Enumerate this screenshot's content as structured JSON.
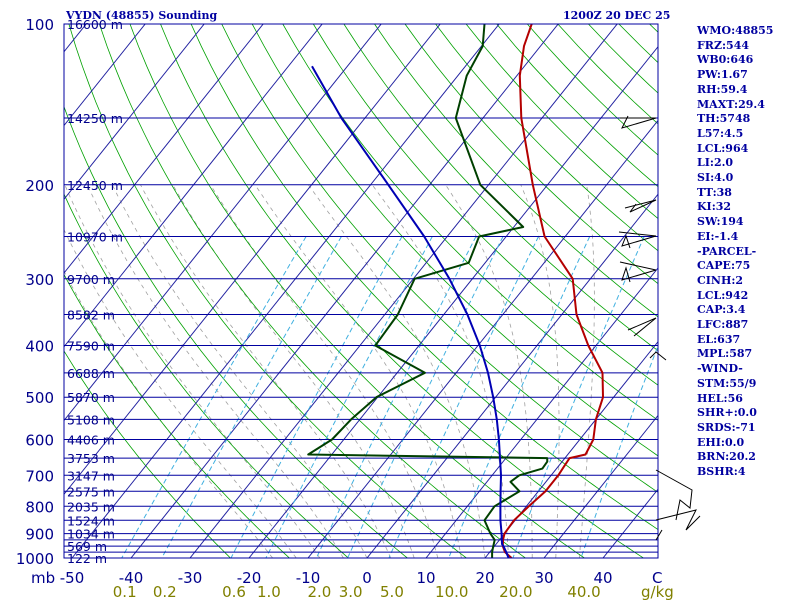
{
  "chart_data": {
    "type": "skew-t sounding",
    "title_left": "VYDN (48855) Sounding",
    "title_right": "1200Z 20 DEC 25",
    "y_unit_label": "mb",
    "x_unit_label": "C",
    "mixing_unit_label": "g/kg",
    "pressure_ticks": [
      100,
      200,
      300,
      400,
      500,
      600,
      700,
      800,
      900,
      1000
    ],
    "pressure_lines": [
      100,
      150,
      200,
      250,
      300,
      350,
      400,
      450,
      500,
      550,
      600,
      650,
      700,
      750,
      800,
      850,
      900,
      925,
      950,
      975,
      1000
    ],
    "temperature_ticks": [
      -50,
      -40,
      -30,
      -20,
      -10,
      0,
      10,
      20,
      30,
      40
    ],
    "mixing_ratio_ticks": [
      "0.1",
      "0.2",
      "0.6",
      "1.0",
      "2.0",
      "3.0",
      "5.0",
      "10.0",
      "20.0",
      "40.0"
    ],
    "mixing_ratio_values": [
      0.1,
      0.2,
      0.6,
      1.0,
      2.0,
      3.0,
      5.0,
      10.0,
      20.0,
      40.0
    ],
    "height_labels": [
      {
        "p": 100,
        "label": "16600 m"
      },
      {
        "p": 150,
        "label": "14250 m"
      },
      {
        "p": 200,
        "label": "12450 m"
      },
      {
        "p": 250,
        "label": "10970 m"
      },
      {
        "p": 300,
        "label": "9700 m"
      },
      {
        "p": 350,
        "label": "8582 m"
      },
      {
        "p": 400,
        "label": "7590 m"
      },
      {
        "p": 450,
        "label": "6688 m"
      },
      {
        "p": 500,
        "label": "5870 m"
      },
      {
        "p": 550,
        "label": "5108 m"
      },
      {
        "p": 600,
        "label": "4406 m"
      },
      {
        "p": 650,
        "label": "3753 m"
      },
      {
        "p": 700,
        "label": "3147 m"
      },
      {
        "p": 750,
        "label": "2575 m"
      },
      {
        "p": 800,
        "label": "2035 m"
      },
      {
        "p": 850,
        "label": "1524 m"
      },
      {
        "p": 900,
        "label": "1034 m"
      },
      {
        "p": 950,
        "label": "569 m"
      },
      {
        "p": 1000,
        "label": "122 m"
      }
    ],
    "series": [
      {
        "name": "Temperature",
        "color": "#b40000",
        "points": [
          [
            1000,
            24.5
          ],
          [
            975,
            22.6
          ],
          [
            950,
            21.4
          ],
          [
            925,
            20.6
          ],
          [
            900,
            20.0
          ],
          [
            850,
            19.8
          ],
          [
            800,
            20.4
          ],
          [
            750,
            21.2
          ],
          [
            700,
            21.2
          ],
          [
            675,
            21.0
          ],
          [
            650,
            20.8
          ],
          [
            640,
            23.0
          ],
          [
            600,
            22.3
          ],
          [
            550,
            20.0
          ],
          [
            500,
            18.2
          ],
          [
            450,
            14.8
          ],
          [
            400,
            8.7
          ],
          [
            350,
            2.5
          ],
          [
            300,
            -3.0
          ],
          [
            250,
            -13.5
          ],
          [
            200,
            -22.5
          ],
          [
            150,
            -33.5
          ],
          [
            125,
            -39.5
          ],
          [
            110,
            -42.8
          ],
          [
            100,
            -44.5
          ]
        ]
      },
      {
        "name": "Dewpoint",
        "color": "#004000",
        "points": [
          [
            1000,
            21.2
          ],
          [
            975,
            20.4
          ],
          [
            950,
            19.8
          ],
          [
            925,
            19.2
          ],
          [
            900,
            17.6
          ],
          [
            850,
            14.8
          ],
          [
            800,
            14.6
          ],
          [
            750,
            16.8
          ],
          [
            720,
            14.0
          ],
          [
            700,
            14.6
          ],
          [
            680,
            17.6
          ],
          [
            660,
            17.5
          ],
          [
            650,
            17.0
          ],
          [
            640,
            -24.0
          ],
          [
            600,
            -22.0
          ],
          [
            550,
            -21.5
          ],
          [
            500,
            -20.2
          ],
          [
            450,
            -15.3
          ],
          [
            400,
            -27.4
          ],
          [
            350,
            -27.8
          ],
          [
            300,
            -29.8
          ],
          [
            280,
            -22.8
          ],
          [
            250,
            -24.6
          ],
          [
            240,
            -18.4
          ],
          [
            200,
            -31.4
          ],
          [
            150,
            -44.6
          ],
          [
            125,
            -48.5
          ],
          [
            110,
            -49.8
          ],
          [
            100,
            -52.5
          ]
        ]
      },
      {
        "name": "Parcel",
        "color": "#0000b4",
        "points": [
          [
            1000,
            24.0
          ],
          [
            975,
            22.8
          ],
          [
            950,
            21.5
          ],
          [
            942,
            21.0
          ],
          [
            900,
            19.5
          ],
          [
            850,
            17.5
          ],
          [
            800,
            15.6
          ],
          [
            750,
            13.6
          ],
          [
            700,
            11.5
          ],
          [
            650,
            9.0
          ],
          [
            600,
            6.3
          ],
          [
            550,
            3.2
          ],
          [
            500,
            -0.4
          ],
          [
            450,
            -4.6
          ],
          [
            400,
            -9.7
          ],
          [
            350,
            -16.0
          ],
          [
            300,
            -23.9
          ],
          [
            250,
            -33.9
          ],
          [
            200,
            -47.0
          ],
          [
            150,
            -64.0
          ],
          [
            120,
            -76.0
          ]
        ]
      }
    ],
    "wind_barbs_on_chart": true,
    "indices": [
      "WMO:48855",
      "FRZ:544",
      "WB0:646",
      "PW:1.67",
      "RH:59.4",
      "MAXT:29.4",
      "TH:5748",
      "L57:4.5",
      "LCL:964",
      "LI:2.0",
      "SI:4.0",
      "TT:38",
      "KI:32",
      "SW:194",
      "EI:-1.4",
      "-PARCEL-",
      "CAPE:75",
      "CINH:2",
      "LCL:942",
      "CAP:3.4",
      "LFC:887",
      "EL:637",
      "MPL:587",
      "-WIND-",
      "STM:55/9",
      "HEL:56",
      "SHR+:0.0",
      "SRDS:-71",
      "EHI:0.0",
      "BRN:20.2",
      "BSHR:4"
    ]
  }
}
